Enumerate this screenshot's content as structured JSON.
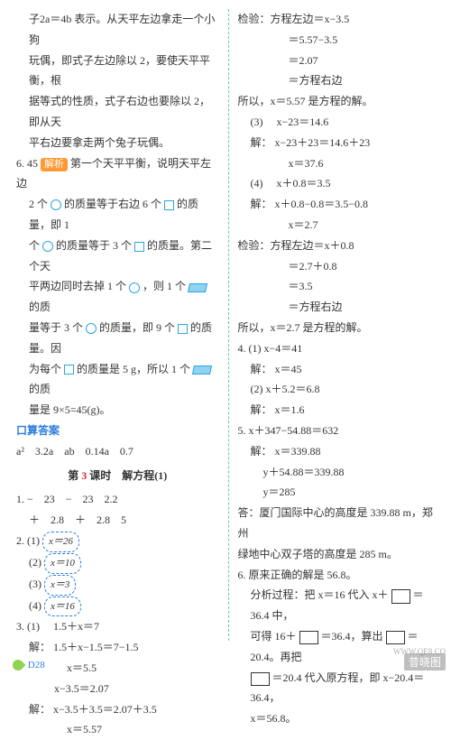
{
  "left": {
    "para5_l1": "子2a＝4b 表示。从天平左边拿走一个小狗",
    "para5_l2": "玩偶，即式子左边除以 2，要使天平平衡，根",
    "para5_l3": "据等式的性质，式子右边也要除以 2，即从天",
    "para5_l4": "平右边要拿走两个兔子玩偶。",
    "q6_num": "6.",
    "q6_ans": "45",
    "q6_tag": "解析",
    "q6_l1a": "第一个天平平衡，说明天平左边",
    "q6_l2a": "2 个",
    "q6_l2b": "的质量等于右边 6 个",
    "q6_l2c": "的质量，即 1",
    "q6_l3a": "个",
    "q6_l3b": "的质量等于 3 个",
    "q6_l3c": "的质量。第二个天",
    "q6_l4a": "平两边同时去掉 1 个",
    "q6_l4b": "，则 1 个",
    "q6_l4c": "的质",
    "q6_l5a": "量等于 3 个",
    "q6_l5b": "的质量，即 9 个",
    "q6_l5c": "的质量。因",
    "q6_l6a": "为每个",
    "q6_l6b": "的质量是 5 g，所以 1 个",
    "q6_l6c": "的质",
    "q6_l7": "量是 9×5=45(g)。",
    "kousuan_title": "口算答案",
    "ks_row": "a²　3.2a　ab　0.14a　0.7",
    "lesson_title_a": "第",
    "lesson_title_num": "3",
    "lesson_title_b": "课时　解方程(1)",
    "q1_num": "1.",
    "q1_r1": "−　23　−　23　2.2",
    "q1_r2": "＋　2.8　＋　2.8　5",
    "q2_num": "2.",
    "q2_1_label": "(1)",
    "q2_1": "x＝26",
    "q2_2_label": "(2)",
    "q2_2": "x＝10",
    "q2_3_label": "(3)",
    "q2_3": "x＝3",
    "q2_4_label": "(4)",
    "q2_4": "x＝16",
    "q3_num": "3.",
    "q3_1_label": "(1)",
    "q3_1_eq": "1.5＋x＝7",
    "q3_1_s1_label": "解：",
    "q3_1_s1": "1.5＋x−1.5＝7−1.5",
    "q3_1_s2": "x＝5.5",
    "q3_1_s3": "x−3.5＝2.07",
    "q3_1_s4_label": "解：",
    "q3_1_s4": "x−3.5＋3.5＝2.07＋3.5",
    "q3_1_s5": "x＝5.57"
  },
  "right": {
    "chk_l1": "检验：方程左边＝x−3.5",
    "chk_l2": "＝5.57−3.5",
    "chk_l3": "＝2.07",
    "chk_l4": "＝方程右边",
    "chk_l5": "所以，x＝5.57 是方程的解。",
    "p3_label": "(3)",
    "p3_eq": "x−23＝14.6",
    "p3_s1_label": "解：",
    "p3_s1": "x−23＋23＝14.6＋23",
    "p3_s2": "x＝37.6",
    "p4_label": "(4)",
    "p4_eq": "x＋0.8＝3.5",
    "p4_s1_label": "解：",
    "p4_s1": "x＋0.8−0.8＝3.5−0.8",
    "p4_s2": "x＝2.7",
    "chk2_l1": "检验：方程左边＝x＋0.8",
    "chk2_l2": "＝2.7＋0.8",
    "chk2_l3": "＝3.5",
    "chk2_l4": "＝方程右边",
    "chk2_l5": "所以，x＝2.7 是方程的解。",
    "q4_num": "4.",
    "q4_1_label": "(1)",
    "q4_1_eq": "x−4＝41",
    "q4_1_s_label": "解：",
    "q4_1_s": "x＝45",
    "q4_2_label": "(2)",
    "q4_2_eq": "x＋5.2＝6.8",
    "q4_2_s_label": "解：",
    "q4_2_s": "x＝1.6",
    "q5_num": "5.",
    "q5_eq": "x＋347−54.88＝632",
    "q5_s_label": "解：",
    "q5_s1": "x＝339.88",
    "q5_s2": "y＋54.88＝339.88",
    "q5_s3": "y＝285",
    "q5_ans1": "答：厦门国际中心的高度是 339.88 m，郑州",
    "q5_ans2": "绿地中心双子塔的高度是 285 m。",
    "q6_num": "6.",
    "q6_ans": "原来正确的解是 56.8。",
    "q6_l1a": "分析过程：把 x＝16 代入 x＋",
    "q6_l1b": "＝36.4 中，",
    "q6_l2a": "可得 16＋",
    "q6_l2b": "＝36.4，算出",
    "q6_l2c": "＝20.4。再把",
    "q6_l3a": "＝20.4 代入原方程，即 x−20.4＝36.4，",
    "q6_l4": "x＝56.8。"
  },
  "footer": "D28",
  "watermark": "昔晓图",
  "watermark_sub": "WWW.QE8.CO"
}
